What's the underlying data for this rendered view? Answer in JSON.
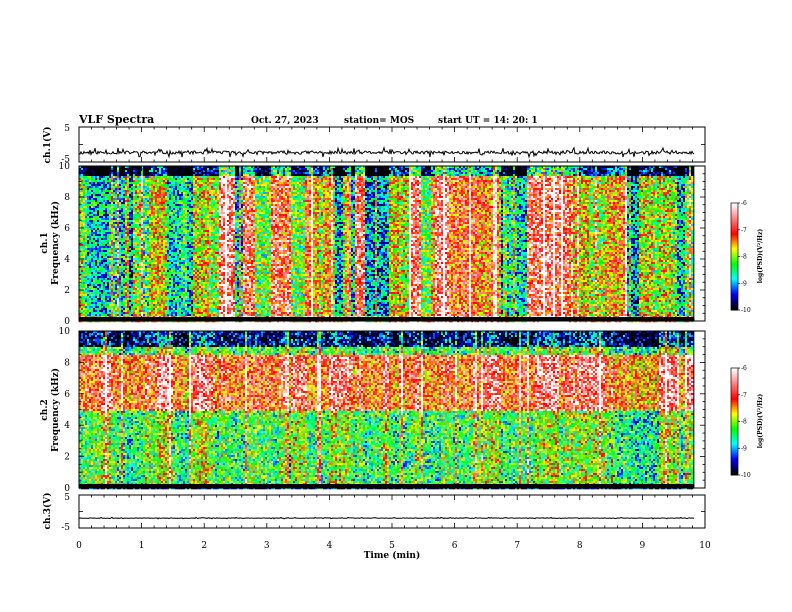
{
  "header": {
    "title": "VLF Spectra",
    "date": "Oct. 27, 2023",
    "station": "station= MOS",
    "start": "start  UT =   14: 20: 1"
  },
  "chart_data": {
    "type": "heatmap",
    "xlabel": "Time  (min)",
    "xlim": [
      0,
      10
    ],
    "xticks": [
      "0",
      "1",
      "2",
      "3",
      "4",
      "5",
      "6",
      "7",
      "8",
      "9",
      "10"
    ],
    "data_end_min": 9.83,
    "panels": [
      {
        "kind": "waveform",
        "ylabel": "ch.1(V)",
        "ylim": [
          -5,
          5
        ],
        "yticks": [
          "-5",
          "5"
        ],
        "level": -2.3
      },
      {
        "kind": "spectrogram",
        "ylabel_top": "ch.1",
        "ylabel": "Frequency  (kHz)",
        "ylim": [
          0,
          10
        ],
        "yticks": [
          "0",
          "2",
          "4",
          "6",
          "8",
          "10"
        ],
        "dominant_band_khz": [
          0,
          10
        ],
        "colorbar": {
          "label": "log(PSD)(V²/Hz)",
          "range": [
            -10,
            -6
          ],
          "ticks": [
            "-10",
            "-9",
            "-8",
            "-7",
            "-6"
          ]
        }
      },
      {
        "kind": "spectrogram",
        "ylabel_top": "ch.2",
        "ylabel": "Frequency  (kHz)",
        "ylim": [
          0,
          10
        ],
        "yticks": [
          "0",
          "2",
          "4",
          "6",
          "8",
          "10"
        ],
        "dominant_band_khz": [
          5,
          8.5
        ],
        "colorbar": {
          "label": "log(PSD)(V²/Hz)",
          "range": [
            -10,
            -6
          ],
          "ticks": [
            "-10",
            "-9",
            "-8",
            "-7",
            "-6"
          ]
        }
      },
      {
        "kind": "waveform",
        "ylabel": "ch.3(V)",
        "ylim": [
          -5,
          5
        ],
        "yticks": [
          "-5",
          "5"
        ],
        "level": -2.0
      }
    ],
    "colormap": [
      "#000000",
      "#0000ff",
      "#00ffff",
      "#00ff00",
      "#ffff00",
      "#ff0000",
      "#ff8080",
      "#ffffff"
    ]
  }
}
